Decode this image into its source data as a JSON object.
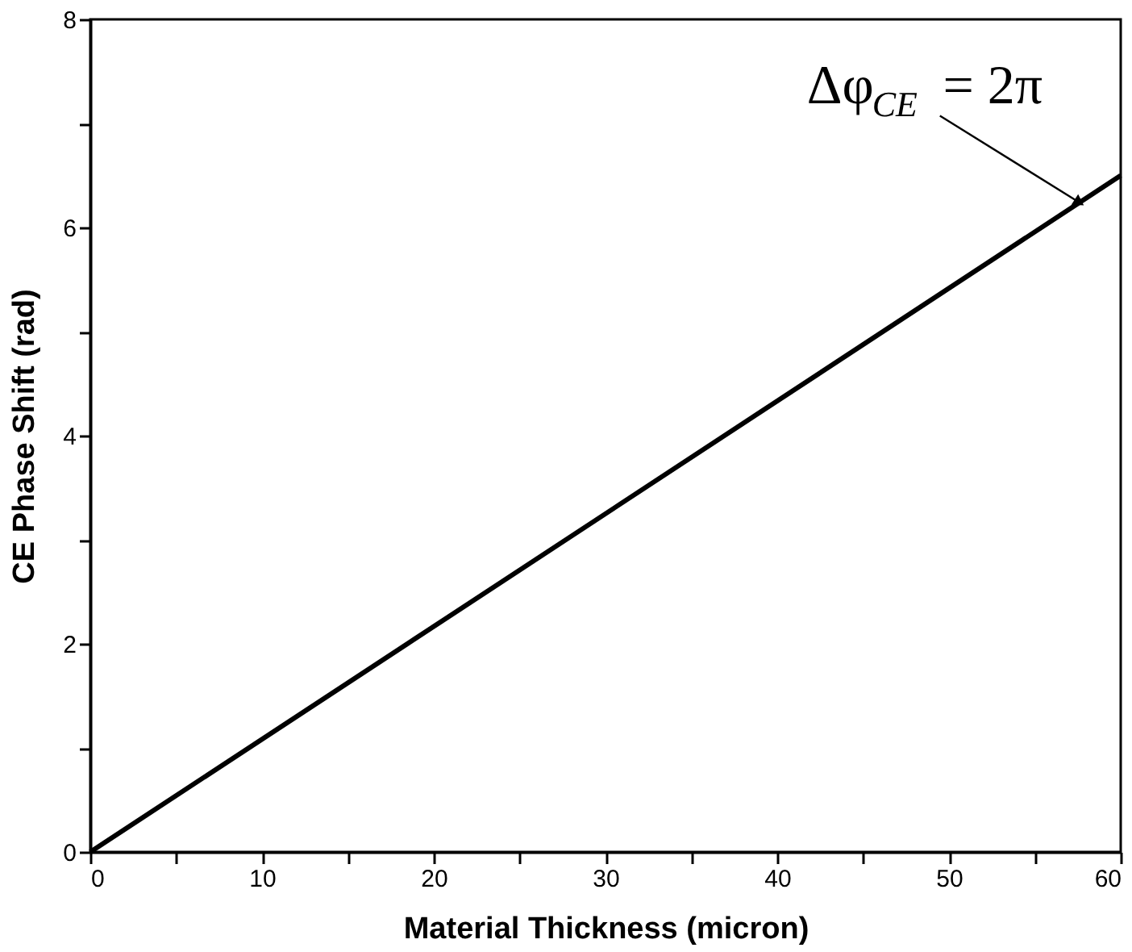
{
  "chart_data": {
    "type": "line",
    "xlabel": "Material Thickness (micron)",
    "ylabel": "CE Phase Shift (rad)",
    "x": [
      0,
      60
    ],
    "series": [
      {
        "color": "#000000",
        "values": [
          0,
          6.5
        ]
      }
    ],
    "xlim": [
      0,
      60
    ],
    "ylim": [
      0,
      8
    ],
    "xticks": [
      0,
      {
        "value": 5,
        "label": null
      },
      10,
      {
        "value": 15,
        "label": null
      },
      20,
      {
        "value": 25,
        "label": null
      },
      30,
      {
        "value": 35,
        "label": null
      },
      40,
      {
        "value": 45,
        "label": null
      },
      50,
      {
        "value": 55,
        "label": null
      },
      60
    ],
    "yticks": [
      0,
      {
        "value": 1,
        "label": null
      },
      2,
      {
        "value": 3,
        "label": null
      },
      4,
      {
        "value": 5,
        "label": null
      },
      6,
      {
        "value": 7,
        "label": null
      },
      8
    ],
    "grid": false,
    "marker": "none",
    "line_style": "solid",
    "annotations": [
      {
        "text": "Δφ$_{CE}$ = 2π",
        "x": 57.5,
        "y": 6.25
      }
    ]
  }
}
